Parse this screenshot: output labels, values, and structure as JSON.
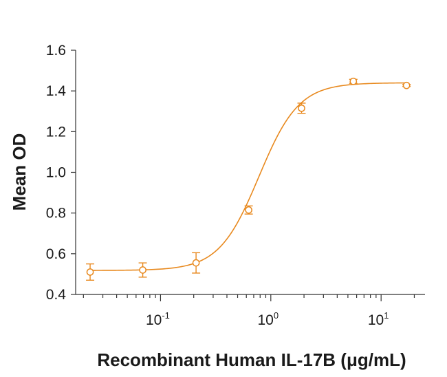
{
  "chart_data": {
    "type": "scatter",
    "xlabel": "Recombinant Human IL-17B (μg/mL)",
    "ylabel": "Mean OD",
    "xscale": "log",
    "xlim": [
      0.017,
      25
    ],
    "ylim": [
      0.4,
      1.6
    ],
    "yticks": [
      "0.4",
      "0.6",
      "0.8",
      "1.0",
      "1.2",
      "1.4",
      "1.6"
    ],
    "xticks": [
      {
        "value": 0.1,
        "base": "10",
        "exp": "-1"
      },
      {
        "value": 1,
        "base": "10",
        "exp": "0"
      },
      {
        "value": 10,
        "base": "10",
        "exp": "1"
      }
    ],
    "grid": false,
    "legend": "none",
    "color": "#e8891e",
    "points": [
      {
        "x": 0.023,
        "y": 0.51,
        "err": 0.04
      },
      {
        "x": 0.069,
        "y": 0.52,
        "err": 0.035
      },
      {
        "x": 0.21,
        "y": 0.555,
        "err": 0.05
      },
      {
        "x": 0.63,
        "y": 0.815,
        "err": 0.02
      },
      {
        "x": 1.9,
        "y": 1.315,
        "err": 0.025
      },
      {
        "x": 5.6,
        "y": 1.447,
        "err": 0.01
      },
      {
        "x": 17,
        "y": 1.427,
        "err": 0.005
      }
    ],
    "fit": {
      "model": "4PL",
      "bottom": 0.518,
      "top": 1.44,
      "ec50": 0.78,
      "hill": 2.4
    }
  }
}
